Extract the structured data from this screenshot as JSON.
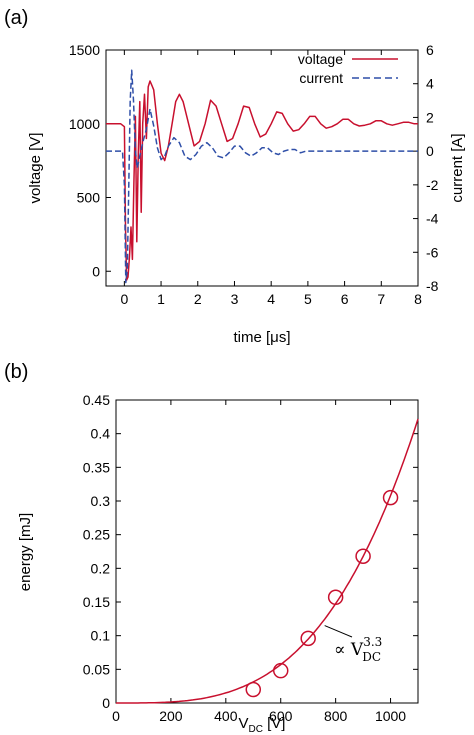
{
  "colors": {
    "voltage": "#c8102e",
    "current": "#2f4fa8",
    "axis": "#000000",
    "fit": "#c8102e"
  },
  "chart_data": [
    {
      "panel_label": "(a)",
      "type": "line",
      "xlabel": "time [μs]",
      "ylabel": "voltage [V]",
      "y2label": "current [A]",
      "xlim": [
        -0.5,
        8
      ],
      "ylim": [
        -100,
        1500
      ],
      "y2lim": [
        -8,
        6
      ],
      "x_ticks": [
        0,
        1,
        2,
        3,
        4,
        5,
        6,
        7,
        8
      ],
      "y_ticks": [
        0,
        500,
        1000,
        1500
      ],
      "y2_ticks": [
        -8,
        -6,
        -4,
        -2,
        0,
        2,
        4,
        6
      ],
      "legend_position": "top-right",
      "series": [
        {
          "name": "voltage",
          "axis": "left",
          "style": "solid",
          "x": [
            -0.5,
            -0.1,
            0.0,
            0.03,
            0.06,
            0.1,
            0.14,
            0.18,
            0.22,
            0.26,
            0.3,
            0.34,
            0.38,
            0.42,
            0.46,
            0.5,
            0.55,
            0.6,
            0.65,
            0.7,
            0.75,
            0.8,
            0.9,
            1.0,
            1.1,
            1.2,
            1.3,
            1.4,
            1.5,
            1.6,
            1.75,
            1.9,
            2.05,
            2.2,
            2.35,
            2.5,
            2.65,
            2.8,
            2.95,
            3.1,
            3.25,
            3.4,
            3.55,
            3.7,
            3.85,
            4.0,
            4.15,
            4.3,
            4.45,
            4.6,
            4.75,
            4.9,
            5.05,
            5.2,
            5.35,
            5.5,
            5.65,
            5.8,
            5.95,
            6.1,
            6.25,
            6.4,
            6.55,
            6.7,
            6.85,
            7.0,
            7.15,
            7.3,
            7.45,
            7.6,
            7.75,
            7.9,
            8.0
          ],
          "values": [
            1000,
            1000,
            980,
            300,
            -60,
            -40,
            100,
            300,
            80,
            600,
            1050,
            200,
            800,
            1150,
            400,
            1000,
            1200,
            900,
            1250,
            1290,
            1260,
            1230,
            1000,
            800,
            750,
            850,
            1000,
            1150,
            1200,
            1150,
            1000,
            850,
            880,
            1000,
            1160,
            1120,
            1000,
            880,
            900,
            1000,
            1120,
            1110,
            1000,
            910,
            930,
            1000,
            1080,
            1070,
            1000,
            950,
            960,
            1000,
            1050,
            1050,
            1000,
            970,
            980,
            1000,
            1030,
            1030,
            1000,
            985,
            990,
            1000,
            1020,
            1020,
            1000,
            990,
            1000,
            1010,
            1010,
            1000,
            1000
          ]
        },
        {
          "name": "current",
          "axis": "right",
          "style": "dashed",
          "x": [
            -0.5,
            -0.05,
            0.0,
            0.04,
            0.08,
            0.12,
            0.16,
            0.2,
            0.25,
            0.3,
            0.35,
            0.4,
            0.5,
            0.6,
            0.7,
            0.8,
            0.9,
            1.0,
            1.1,
            1.2,
            1.35,
            1.5,
            1.65,
            1.8,
            1.95,
            2.1,
            2.25,
            2.4,
            2.55,
            2.7,
            2.85,
            3.0,
            3.15,
            3.3,
            3.45,
            3.6,
            3.75,
            3.9,
            4.05,
            4.2,
            4.35,
            4.5,
            4.65,
            4.8,
            4.95,
            5.1,
            5.5,
            6.0,
            6.5,
            7.0,
            7.5,
            8.0
          ],
          "values": [
            0,
            0,
            -2,
            -7.8,
            -7,
            -2,
            3,
            4.8,
            3,
            0,
            -1,
            -0.5,
            0.5,
            1.3,
            2.5,
            1.5,
            0.2,
            -0.5,
            -0.3,
            0.3,
            0.8,
            0.5,
            -0.3,
            -0.5,
            -0.2,
            0.3,
            0.5,
            0.2,
            -0.3,
            -0.4,
            -0.1,
            0.3,
            0.3,
            -0.1,
            -0.3,
            -0.1,
            0.2,
            0.2,
            -0.1,
            -0.2,
            0,
            0.1,
            0.1,
            -0.1,
            0,
            0,
            0,
            0,
            0,
            0,
            0,
            0
          ]
        }
      ]
    },
    {
      "panel_label": "(b)",
      "type": "scatter",
      "xlabel": "V",
      "xlabel_sub": "DC",
      "xlabel_unit": " [V]",
      "ylabel": "energy [mJ]",
      "xlim": [
        0,
        1100
      ],
      "ylim": [
        0,
        0.45
      ],
      "x_ticks": [
        0,
        200,
        400,
        600,
        800,
        1000
      ],
      "y_ticks": [
        0,
        0.05,
        0.1,
        0.15,
        0.2,
        0.25,
        0.3,
        0.35,
        0.4,
        0.45
      ],
      "y_tick_labels": [
        "0",
        "0.05",
        "0.1",
        "0.15",
        "0.2",
        "0.25",
        "0.3",
        "0.35",
        "0.4",
        "0.45"
      ],
      "points": {
        "x": [
          500,
          600,
          700,
          800,
          900,
          1000
        ],
        "y": [
          0.02,
          0.048,
          0.096,
          0.157,
          0.218,
          0.305
        ]
      },
      "fit": {
        "exponent": 3.3,
        "coefficient_at_1000": 0.308
      },
      "annotation": {
        "prefix": "∝ V",
        "sub": "DC",
        "sup": "3.3",
        "points_to": [
          760,
          0.115
        ]
      }
    }
  ]
}
